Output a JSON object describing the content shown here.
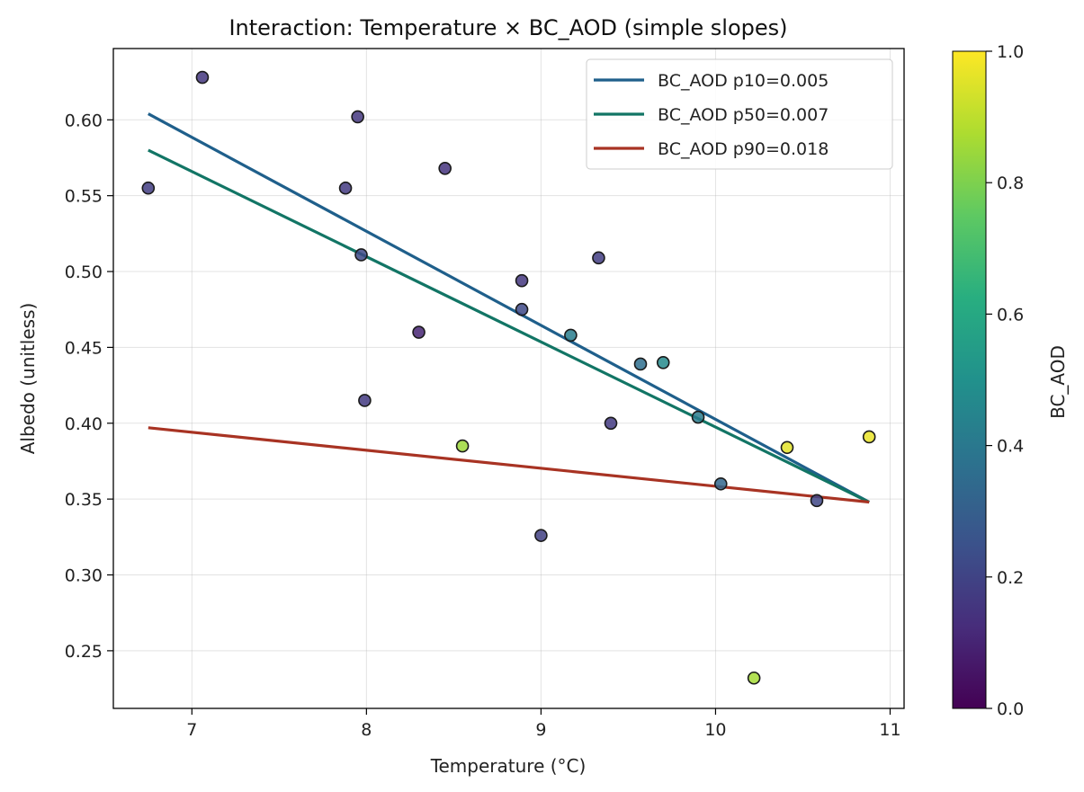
{
  "chart_data": {
    "type": "scatter",
    "title": "Interaction: Temperature × BC_AOD (simple slopes)",
    "xlabel": "Temperature (°C)",
    "ylabel": "Albedo (unitless)",
    "xlim": [
      6.55,
      11.08
    ],
    "ylim": [
      0.212,
      0.647
    ],
    "xticks": [
      7,
      8,
      9,
      10,
      11
    ],
    "yticks": [
      0.25,
      0.3,
      0.35,
      0.4,
      0.45,
      0.5,
      0.55,
      0.6
    ],
    "xtick_labels": [
      "7",
      "8",
      "9",
      "10",
      "11"
    ],
    "ytick_labels": [
      "0.25",
      "0.30",
      "0.35",
      "0.40",
      "0.45",
      "0.50",
      "0.55",
      "0.60"
    ],
    "grid": true,
    "legend_position": "top-right",
    "points": [
      {
        "x": 6.75,
        "y": 0.555,
        "c": 0.18
      },
      {
        "x": 7.06,
        "y": 0.628,
        "c": 0.16
      },
      {
        "x": 7.88,
        "y": 0.555,
        "c": 0.17
      },
      {
        "x": 7.95,
        "y": 0.602,
        "c": 0.16
      },
      {
        "x": 7.97,
        "y": 0.511,
        "c": 0.22
      },
      {
        "x": 7.99,
        "y": 0.415,
        "c": 0.17
      },
      {
        "x": 8.3,
        "y": 0.46,
        "c": 0.1
      },
      {
        "x": 8.45,
        "y": 0.568,
        "c": 0.15
      },
      {
        "x": 8.55,
        "y": 0.385,
        "c": 0.85
      },
      {
        "x": 8.89,
        "y": 0.494,
        "c": 0.16
      },
      {
        "x": 8.89,
        "y": 0.475,
        "c": 0.22
      },
      {
        "x": 9.0,
        "y": 0.326,
        "c": 0.19
      },
      {
        "x": 9.17,
        "y": 0.458,
        "c": 0.42
      },
      {
        "x": 9.33,
        "y": 0.509,
        "c": 0.18
      },
      {
        "x": 9.4,
        "y": 0.4,
        "c": 0.17
      },
      {
        "x": 9.57,
        "y": 0.439,
        "c": 0.36
      },
      {
        "x": 9.7,
        "y": 0.44,
        "c": 0.47
      },
      {
        "x": 9.9,
        "y": 0.404,
        "c": 0.41
      },
      {
        "x": 10.03,
        "y": 0.36,
        "c": 0.33
      },
      {
        "x": 10.22,
        "y": 0.232,
        "c": 0.86
      },
      {
        "x": 10.41,
        "y": 0.384,
        "c": 0.96
      },
      {
        "x": 10.58,
        "y": 0.349,
        "c": 0.21
      },
      {
        "x": 10.88,
        "y": 0.391,
        "c": 0.97
      }
    ],
    "series": [
      {
        "name": "BC_AOD p10=0.005",
        "color": "#1f5f8b",
        "x": [
          6.75,
          10.88
        ],
        "y": [
          0.604,
          0.348
        ]
      },
      {
        "name": "BC_AOD p50=0.007",
        "color": "#127565",
        "x": [
          6.75,
          10.88
        ],
        "y": [
          0.58,
          0.348
        ]
      },
      {
        "name": "BC_AOD p90=0.018",
        "color": "#a83323",
        "x": [
          6.75,
          10.88
        ],
        "y": [
          0.397,
          0.348
        ]
      }
    ],
    "colorbar": {
      "label": "BC_AOD",
      "colormap": "viridis",
      "range": [
        0.0,
        1.0
      ],
      "ticks": [
        0.0,
        0.2,
        0.4,
        0.6,
        0.8,
        1.0
      ],
      "tick_labels": [
        "0.0",
        "0.2",
        "0.4",
        "0.6",
        "0.8",
        "1.0"
      ]
    }
  }
}
